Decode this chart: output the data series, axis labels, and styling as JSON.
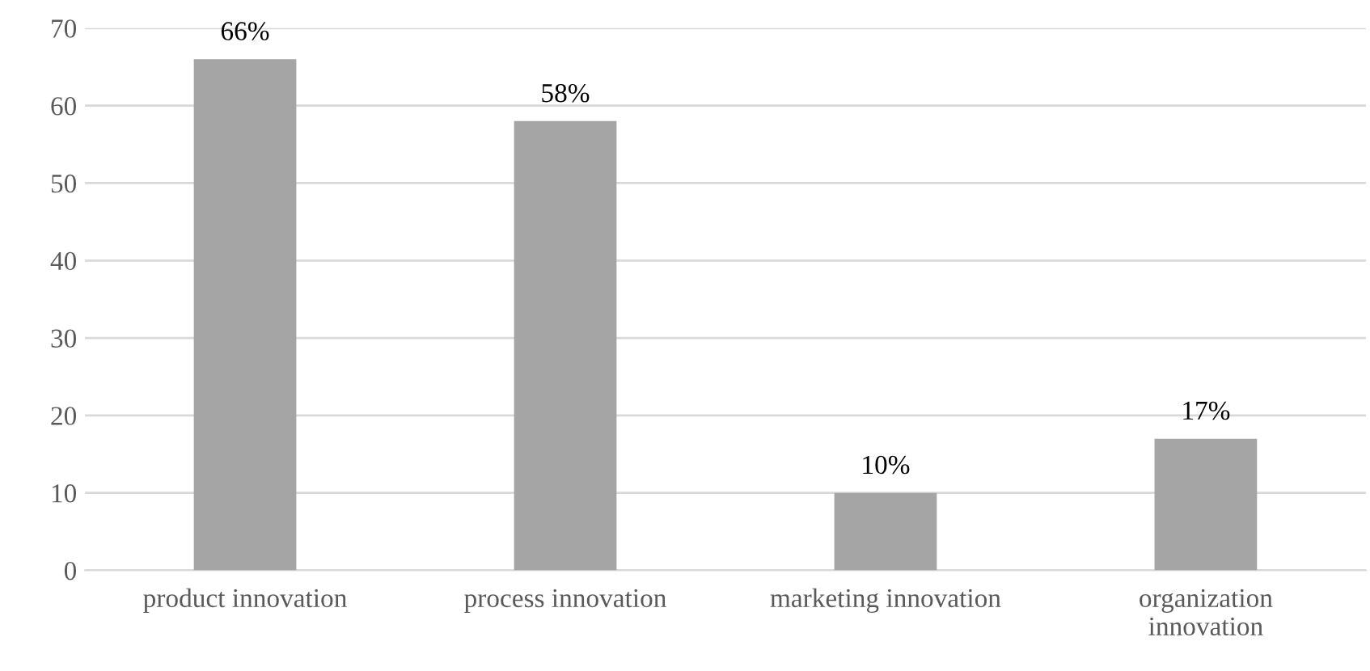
{
  "chart_data": {
    "type": "bar",
    "categories": [
      "product innovation",
      "process innovation",
      "marketing innovation",
      "organization\ninnovation"
    ],
    "values": [
      66,
      58,
      10,
      17
    ],
    "value_labels": [
      "66%",
      "58%",
      "10%",
      "17%"
    ],
    "color": "#a5a5a5",
    "ylim": [
      0,
      70
    ],
    "yticks": [
      0,
      10,
      20,
      30,
      40,
      50,
      60,
      70
    ],
    "grid": "y",
    "legend": false
  }
}
